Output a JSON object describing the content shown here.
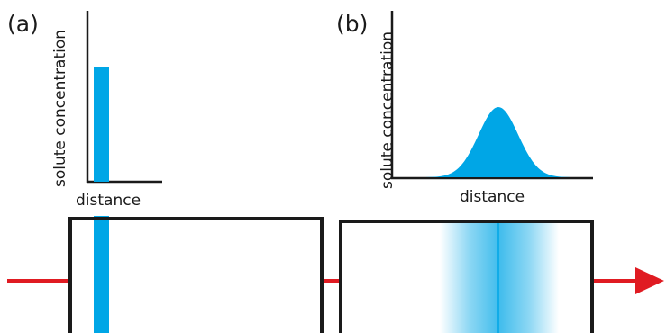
{
  "panel_a": {
    "label": "(a)",
    "ylabel": "solute concentration",
    "xlabel": "distance"
  },
  "panel_b": {
    "label": "(b)",
    "ylabel": "solute concentration",
    "xlabel": "distance"
  },
  "colors": {
    "solute": "#00a6e6",
    "flow_arrow": "#e01b22",
    "column_outline": "#1a1a1a",
    "axis": "#1a1a1a"
  },
  "icons": {
    "flow": "flow-arrow-icon"
  }
}
